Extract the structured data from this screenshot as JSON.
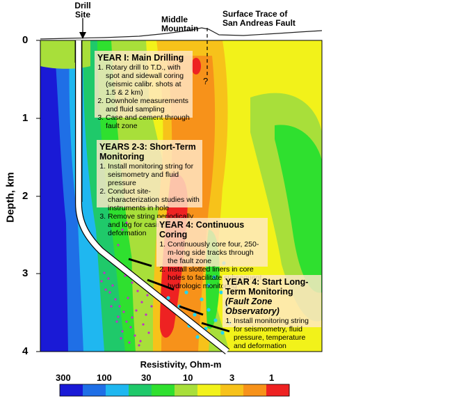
{
  "labels": {
    "drill_site": "Drill Site",
    "middle_mountain": "Middle Mountain",
    "surface_trace": "Surface Trace of San Andreas Fault",
    "question_mark": "?",
    "y_axis": "Depth, km",
    "colorbar_title": "Resistivity, Ohm-m"
  },
  "y_ticks": [
    "0",
    "1",
    "2",
    "3",
    "4"
  ],
  "colorbar": {
    "tick_labels": [
      "300",
      "100",
      "30",
      "10",
      "3",
      "1"
    ],
    "colors": [
      "#1a1ad6",
      "#1f6fe6",
      "#1fb7f0",
      "#1fc96a",
      "#2fe02f",
      "#a8df3a",
      "#f2f21a",
      "#f7c21a",
      "#f7921a",
      "#ee2222"
    ]
  },
  "boxes": {
    "year1": {
      "title": "YEAR I: Main Drilling",
      "items": [
        "Rotary drill to T.D., with spot and sidewall coring (seismic calibr. shots at 1.5 & 2 km)",
        "Downhole measurements and fluid sampling",
        "Case and cement through fault zone"
      ]
    },
    "year23": {
      "title": "YEARS 2-3: Short-Term Monitoring",
      "items": [
        "Install monitoring string for seismometry and fluid pressure",
        "Conduct site-characterization studies with instruments in hole",
        "Remove string periodically and log for casing deformation"
      ]
    },
    "year4a": {
      "title": "YEAR 4: Continuous Coring",
      "items": [
        "Continuously core four, 250-m-long side tracks through the fault zone",
        "Install slotted liners in core holes to facilitate subsequent hydrologic monitoring"
      ]
    },
    "year4b": {
      "title_a": "YEAR 4: Start Long-Term Monitoring",
      "title_b": "(Fault Zone Observatory)",
      "items": [
        "Install monitoring string for seismometry, fluid pressure, temperature and deformation"
      ]
    }
  }
}
